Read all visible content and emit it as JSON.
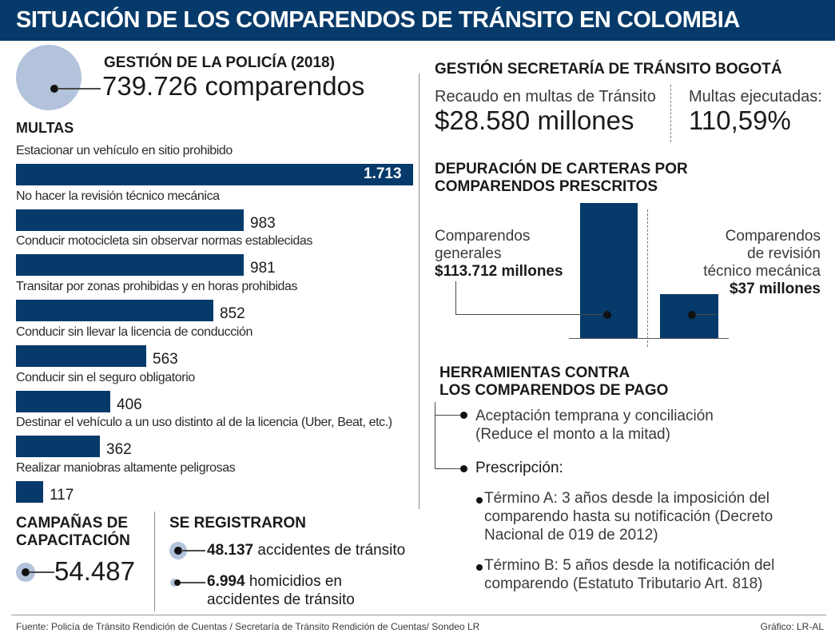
{
  "header": {
    "title": "SITUACIÓN DE LOS COMPARENDOS DE TRÁNSITO EN COLOMBIA"
  },
  "policia": {
    "title": "GESTIÓN DE LA POLICÍA (2018)",
    "total": "739.726 comparendos"
  },
  "multas": {
    "title": "MULTAS"
  },
  "chart_data": {
    "type": "bar",
    "title": "MULTAS",
    "orientation": "horizontal",
    "categories": [
      "Estacionar un vehículo en sitio prohibido",
      "No hacer la revisión técnico mecánica",
      "Conducir motocicleta sin observar normas establecidas",
      "Transitar por zonas prohibidas y en horas prohibidas",
      "Conducir sin llevar la licencia de conducción",
      "Conducir sin el seguro obligatorio",
      "Destinar el vehículo a un uso distinto al de la licencia (Uber, Beat, etc.)",
      "Realizar maniobras altamente peligrosas"
    ],
    "values": [
      1713,
      983,
      981,
      852,
      563,
      406,
      362,
      117
    ],
    "value_labels": [
      "1.713",
      "983",
      "981",
      "852",
      "563",
      "406",
      "362",
      "117"
    ],
    "bar_color": "#063a6a"
  },
  "campanas": {
    "title_line1": "CAMPAÑAS DE",
    "title_line2": "CAPACITACIÓN",
    "value": "54.487"
  },
  "registraron": {
    "title": "SE REGISTRARON",
    "item1_value": "48.137",
    "item1_text": " accidentes de tránsito",
    "item2_value": "6.994",
    "item2_text": " homicidios en",
    "item2_line2": "accidentes de tránsito"
  },
  "bogota": {
    "title": "GESTIÓN SECRETARÍA DE TRÁNSITO BOGOTÁ",
    "recaudo_label": "Recaudo en multas de Tránsito",
    "recaudo_value": "$28.580 millones",
    "ejecutadas_label": "Multas ejecutadas:",
    "ejecutadas_value": "110,59%"
  },
  "depuracion": {
    "title_line1": "DEPURACIÓN DE CARTERAS POR",
    "title_line2": "COMPARENDOS PRESCRITOS",
    "left_line1": "Comparendos",
    "left_line2": "generales",
    "left_value": "$113.712 millones",
    "right_line1": "Comparendos",
    "right_line2": "de revisión",
    "right_line3": "técnico mecánica",
    "right_value": "$37 millones"
  },
  "herramientas": {
    "title_line1": "HERRAMIENTAS CONTRA",
    "title_line2": "LOS COMPARENDOS DE PAGO",
    "item1_line1": "Aceptación temprana y conciliación",
    "item1_line2": "(Reduce el monto a la mitad)",
    "item2": "Prescripción:",
    "termA_line1": "Término A: 3 años desde la imposición del",
    "termA_line2": "comparendo hasta su notificación (Decreto",
    "termA_line3": "Nacional de 019 de 2012)",
    "termB_line1": "Término B: 5 años desde la notificación del",
    "termB_line2": "comparendo (Estatuto Tributario Art. 818)"
  },
  "footer": {
    "source": "Fuente: Policía de Tránsito Rendición de Cuentas / Secretaría de Tránsito Rendición de Cuentas/ Sondeo LR",
    "credit": "Gráfico: LR-AL"
  }
}
